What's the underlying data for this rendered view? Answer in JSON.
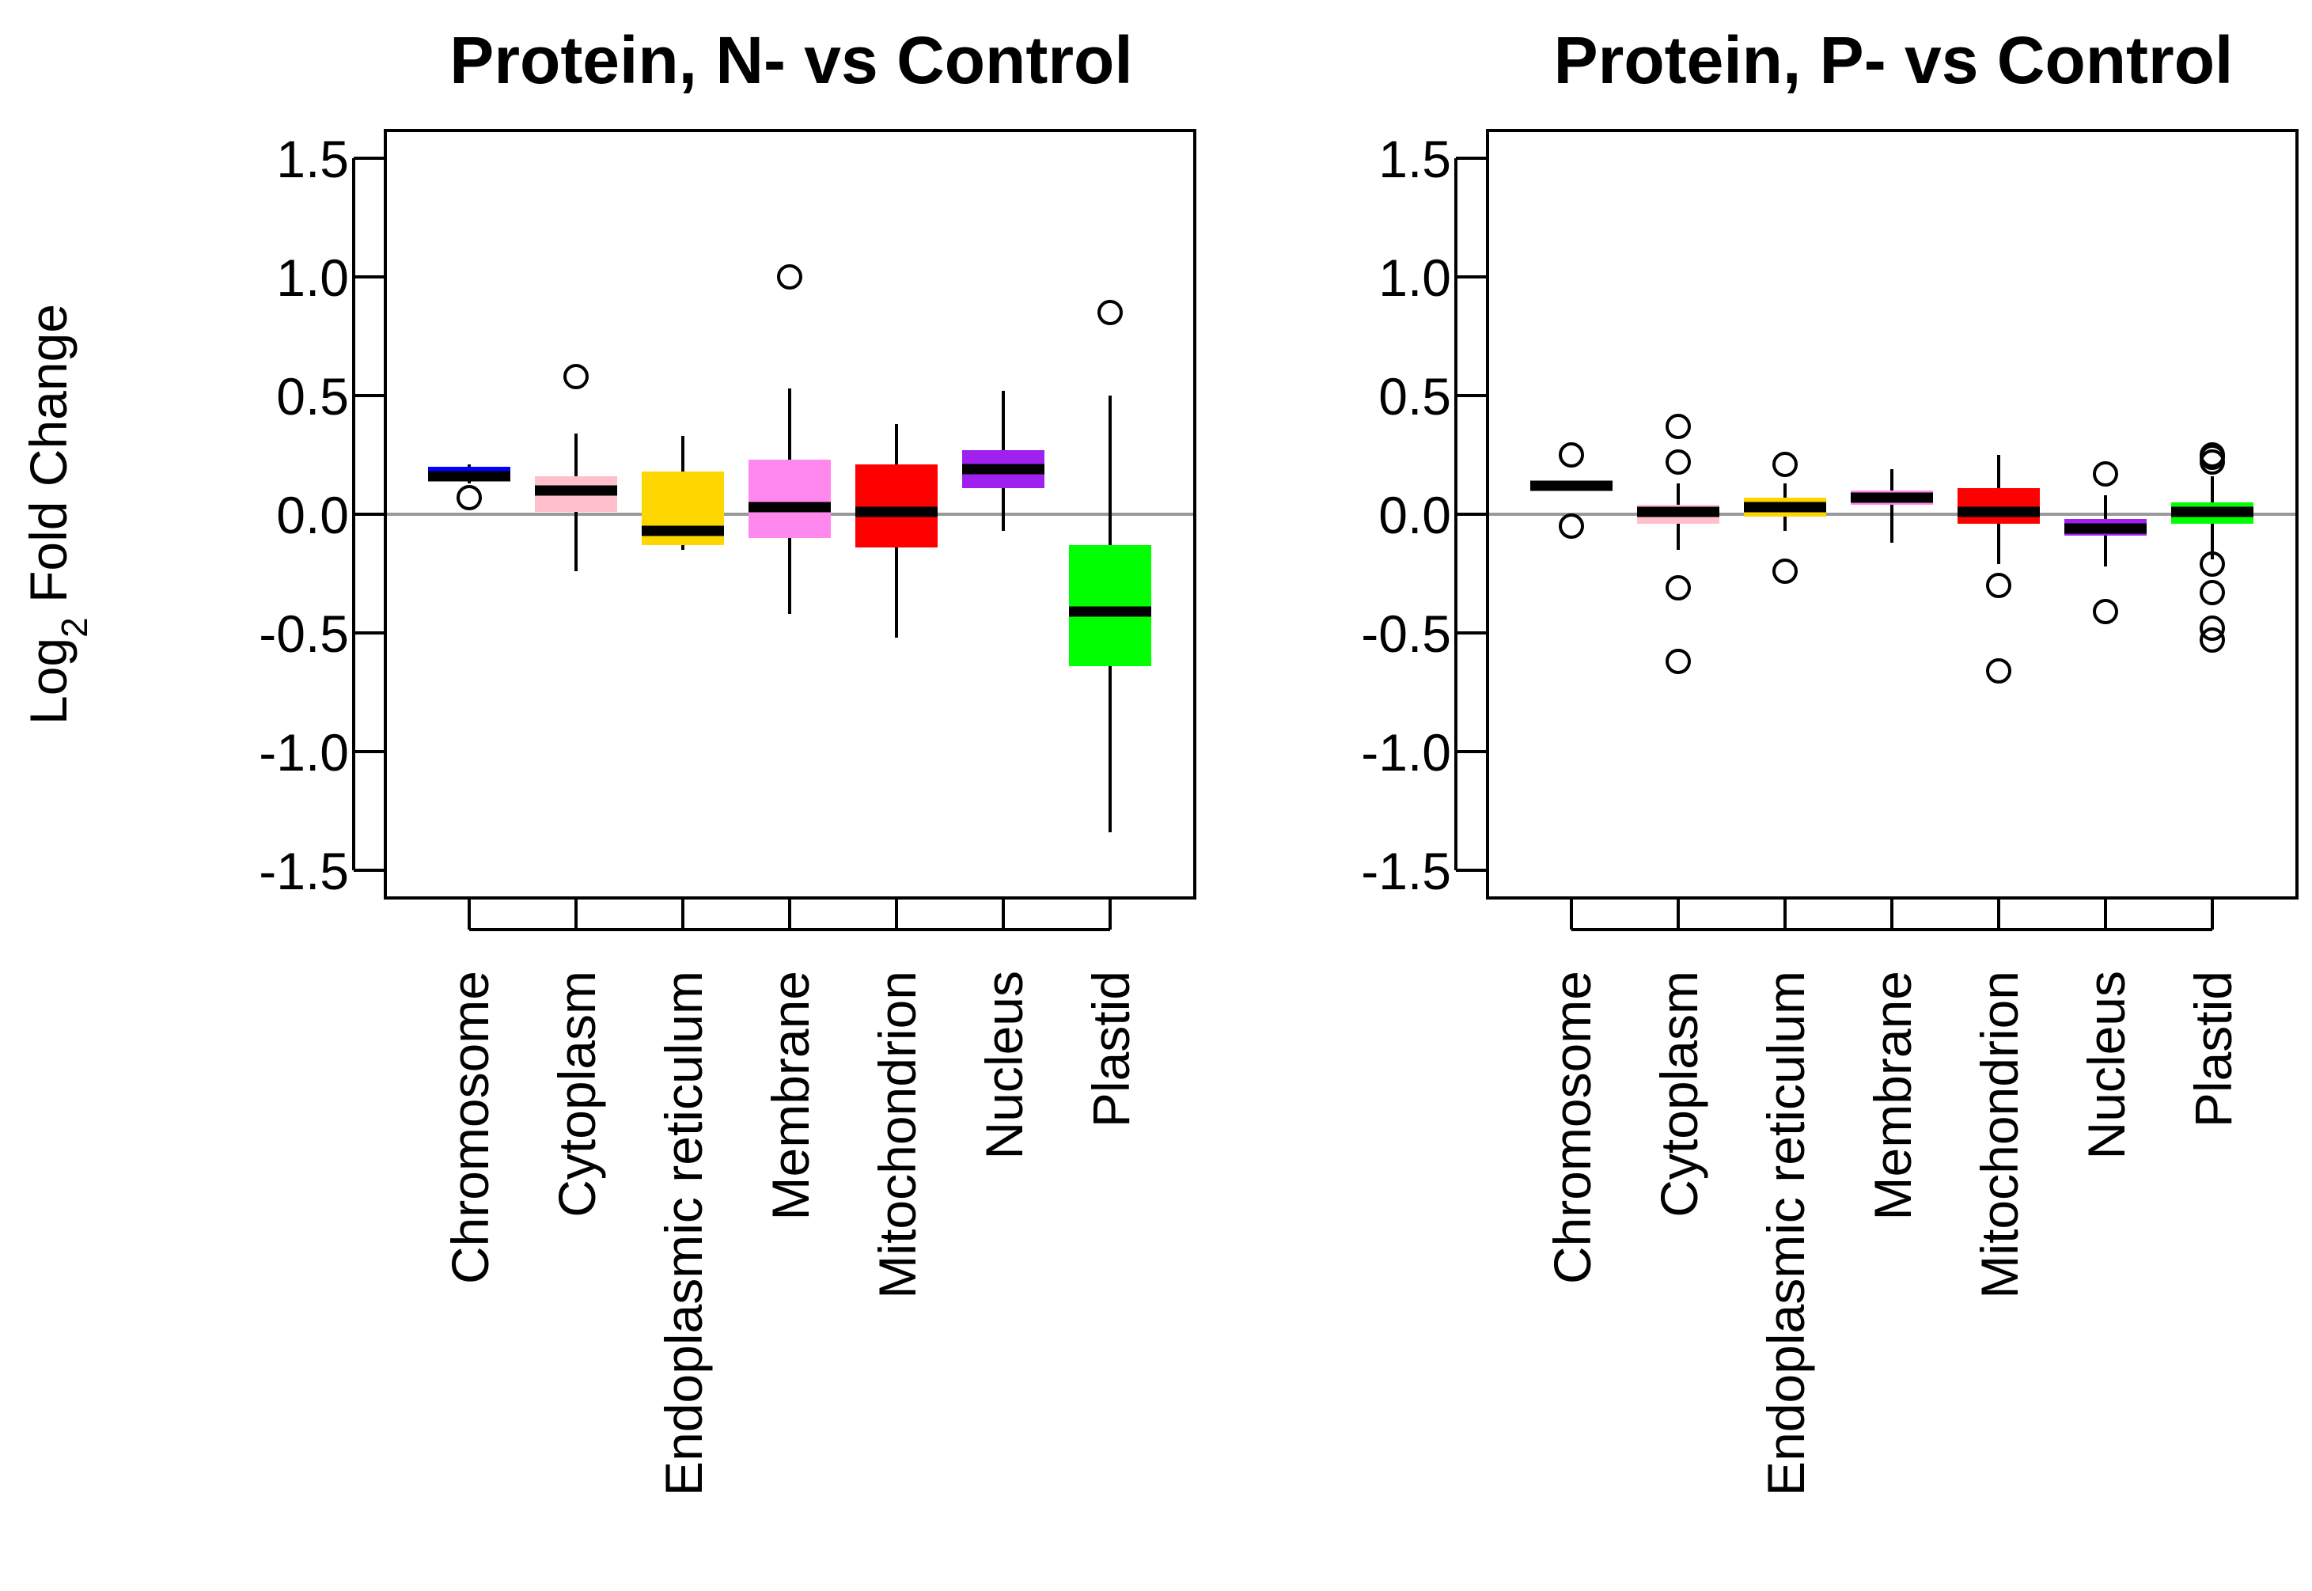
{
  "ylabel": {
    "main": "Log",
    "sub": "2",
    "rest": " Fold Change"
  },
  "chart_data": [
    {
      "type": "box",
      "title": "Protein, N- vs Control",
      "ylim": [
        -1.65,
        1.6
      ],
      "yticks": [
        1.5,
        1.0,
        0.5,
        0.0,
        -0.5,
        -1.0,
        -1.5
      ],
      "ytick_labels": [
        "1.5",
        "1.0",
        "0.5",
        "0.0",
        "-0.5",
        "-1.0",
        "-1.5"
      ],
      "reference_line": 0,
      "categories": [
        "Chromosome",
        "Cytoplasm",
        "Endoplasmic reticulum",
        "Membrane",
        "Mitochondrion",
        "Nucleus",
        "Plastid"
      ],
      "colors": [
        "#0000FF",
        "#FFC0CB",
        "#FFD700",
        "#FF88EE",
        "#FF0000",
        "#A020F0",
        "#00FF00"
      ],
      "boxes": [
        {
          "whisker_low": 0.13,
          "q1": 0.14,
          "median": 0.16,
          "q3": 0.2,
          "whisker_high": 0.21,
          "outliers": [
            0.07
          ]
        },
        {
          "whisker_low": -0.24,
          "q1": 0.01,
          "median": 0.1,
          "q3": 0.16,
          "whisker_high": 0.34,
          "outliers": [
            0.58
          ]
        },
        {
          "whisker_low": -0.15,
          "q1": -0.13,
          "median": -0.07,
          "q3": 0.18,
          "whisker_high": 0.33,
          "outliers": []
        },
        {
          "whisker_low": -0.42,
          "q1": -0.1,
          "median": 0.03,
          "q3": 0.23,
          "whisker_high": 0.53,
          "outliers": [
            1.0
          ]
        },
        {
          "whisker_low": -0.52,
          "q1": -0.14,
          "median": 0.01,
          "q3": 0.21,
          "whisker_high": 0.38,
          "outliers": []
        },
        {
          "whisker_low": -0.07,
          "q1": 0.11,
          "median": 0.19,
          "q3": 0.27,
          "whisker_high": 0.52,
          "outliers": []
        },
        {
          "whisker_low": -1.34,
          "q1": -0.64,
          "median": -0.41,
          "q3": -0.13,
          "whisker_high": 0.5,
          "outliers": [
            0.85
          ]
        }
      ]
    },
    {
      "type": "box",
      "title": "Protein, P- vs Control",
      "ylim": [
        -1.65,
        1.6
      ],
      "yticks": [
        1.5,
        1.0,
        0.5,
        0.0,
        -0.5,
        -1.0,
        -1.5
      ],
      "ytick_labels": [
        "1.5",
        "1.0",
        "0.5",
        "0.0",
        "-0.5",
        "-1.0",
        "-1.5"
      ],
      "reference_line": 0,
      "categories": [
        "Chromosome",
        "Cytoplasm",
        "Endoplasmic reticulum",
        "Membrane",
        "Mitochondrion",
        "Nucleus",
        "Plastid"
      ],
      "colors": [
        "#0000FF",
        "#FFC0CB",
        "#FFD700",
        "#FF88EE",
        "#FF0000",
        "#A020F0",
        "#00FF00"
      ],
      "boxes": [
        {
          "whisker_low": 0.11,
          "q1": 0.11,
          "median": 0.12,
          "q3": 0.13,
          "whisker_high": 0.14,
          "outliers": [
            0.25,
            -0.05
          ]
        },
        {
          "whisker_low": -0.15,
          "q1": -0.04,
          "median": 0.01,
          "q3": 0.04,
          "whisker_high": 0.13,
          "outliers": [
            0.37,
            0.22,
            -0.31,
            -0.62
          ]
        },
        {
          "whisker_low": -0.07,
          "q1": -0.01,
          "median": 0.03,
          "q3": 0.07,
          "whisker_high": 0.13,
          "outliers": [
            0.21,
            -0.24
          ]
        },
        {
          "whisker_low": -0.12,
          "q1": 0.04,
          "median": 0.07,
          "q3": 0.1,
          "whisker_high": 0.19,
          "outliers": []
        },
        {
          "whisker_low": -0.21,
          "q1": -0.04,
          "median": 0.01,
          "q3": 0.11,
          "whisker_high": 0.25,
          "outliers": [
            -0.3,
            -0.66
          ]
        },
        {
          "whisker_low": -0.22,
          "q1": -0.09,
          "median": -0.06,
          "q3": -0.02,
          "whisker_high": 0.08,
          "outliers": [
            0.17,
            -0.41
          ]
        },
        {
          "whisker_low": -0.19,
          "q1": -0.04,
          "median": 0.01,
          "q3": 0.05,
          "whisker_high": 0.16,
          "outliers": [
            0.25,
            0.24,
            0.22,
            -0.21,
            -0.33,
            -0.48,
            -0.53
          ]
        }
      ]
    }
  ]
}
